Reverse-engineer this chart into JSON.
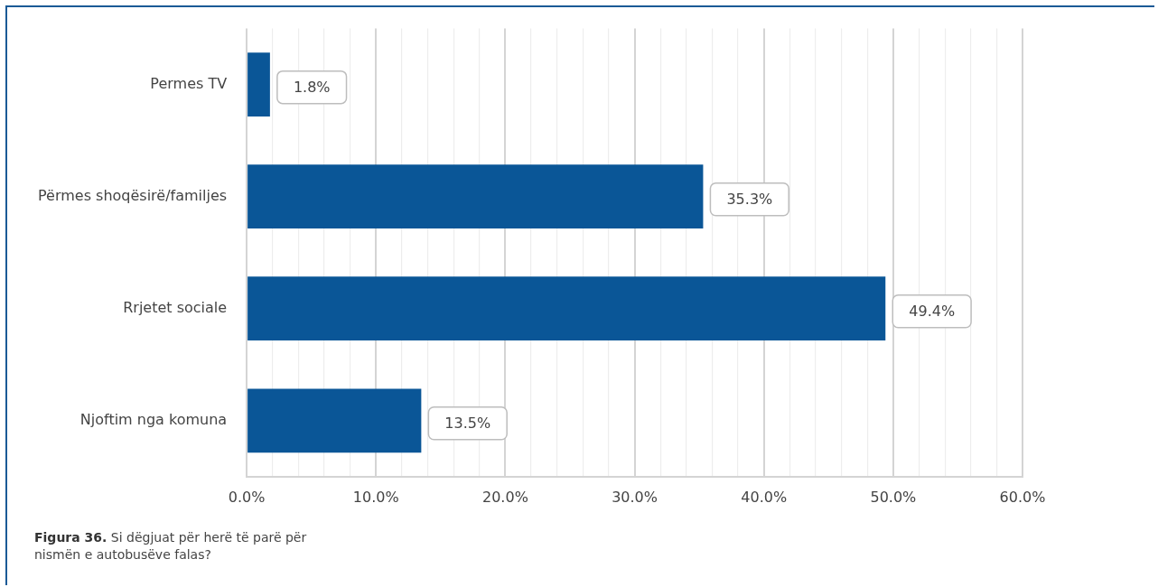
{
  "chart_data": {
    "type": "bar",
    "orientation": "horizontal",
    "title": "Figura 36. Si dëgjuat për herë të parë për nismën e autobusëve falas?",
    "categories": [
      "Permes TV",
      "Përmes shoqësirë/familjes",
      "Rrjetet sociale",
      "Njoftim nga komuna"
    ],
    "values": [
      1.8,
      35.3,
      49.4,
      13.5
    ],
    "color": "#0a5697",
    "value_labels": [
      "1.8%",
      "35.3%",
      "49.4%",
      "13.5%"
    ],
    "xlim": [
      0,
      60
    ],
    "xticks": [
      {
        "value": 0,
        "label": "0.0%"
      },
      {
        "value": 2,
        "label": null
      },
      {
        "value": 4,
        "label": null
      },
      {
        "value": 6,
        "label": null
      },
      {
        "value": 8,
        "label": null
      },
      {
        "value": 10,
        "label": "10.0%"
      },
      {
        "value": 12,
        "label": null
      },
      {
        "value": 14,
        "label": null
      },
      {
        "value": 16,
        "label": null
      },
      {
        "value": 18,
        "label": null
      },
      {
        "value": 20,
        "label": "20.0%"
      },
      {
        "value": 22,
        "label": null
      },
      {
        "value": 24,
        "label": null
      },
      {
        "value": 26,
        "label": null
      },
      {
        "value": 28,
        "label": null
      },
      {
        "value": 30,
        "label": "30.0%"
      },
      {
        "value": 32,
        "label": null
      },
      {
        "value": 34,
        "label": null
      },
      {
        "value": 36,
        "label": null
      },
      {
        "value": 38,
        "label": null
      },
      {
        "value": 40,
        "label": "40.0%"
      },
      {
        "value": 42,
        "label": null
      },
      {
        "value": 44,
        "label": null
      },
      {
        "value": 46,
        "label": null
      },
      {
        "value": 48,
        "label": null
      },
      {
        "value": 50,
        "label": "50.0%"
      },
      {
        "value": 52,
        "label": null
      },
      {
        "value": 54,
        "label": null
      },
      {
        "value": 56,
        "label": null
      },
      {
        "value": 58,
        "label": null
      },
      {
        "value": 60,
        "label": "60.0%"
      }
    ],
    "grid": "x",
    "legend": false
  }
}
